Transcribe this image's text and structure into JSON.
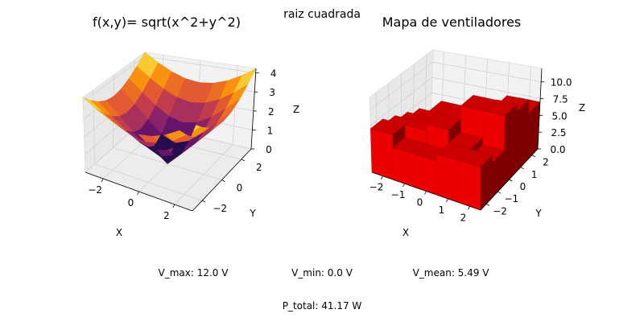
{
  "figure": {
    "suptitle": "raiz cuadrada",
    "stats": {
      "v_max": "V_max: 12.0 V",
      "v_min": "V_min: 0.0 V",
      "v_mean": "V_mean: 5.49 V",
      "p_total": "P_total: 41.17 W"
    }
  },
  "chart_data": [
    {
      "type": "surface",
      "title": "f(x,y)= sqrt(x^2+y^2)",
      "xlabel": "X",
      "ylabel": "Y",
      "zlabel": "Z",
      "xlim": [
        -3,
        3
      ],
      "ylim": [
        -3,
        3
      ],
      "zlim": [
        0,
        4.24
      ],
      "xticks": [
        "−2",
        "0",
        "2"
      ],
      "yticks": [
        "−2",
        "0",
        "2"
      ],
      "zticks": [
        "0",
        "1",
        "2",
        "3",
        "4"
      ],
      "grid_x": [
        -3,
        -2.25,
        -1.5,
        -0.75,
        0,
        0.75,
        1.5,
        2.25,
        3
      ],
      "grid_y": [
        -3,
        -2.25,
        -1.5,
        -0.75,
        0,
        0.75,
        1.5,
        2.25,
        3
      ],
      "function": "sqrt(x^2+y^2)",
      "colormap": "inferno"
    },
    {
      "type": "bar3d",
      "title": "Mapa de ventiladores",
      "xlabel": "X",
      "ylabel": "Y",
      "zlabel": "Z",
      "xlim": [
        -2.5,
        2.5
      ],
      "ylim": [
        -2.5,
        2.5
      ],
      "zlim": [
        0,
        12
      ],
      "xticks": [
        "−2",
        "−1",
        "0",
        "1",
        "2"
      ],
      "yticks": [
        "−2",
        "−1",
        "0",
        "1",
        "2"
      ],
      "zticks": [
        "0.0",
        "2.5",
        "5.0",
        "7.5",
        "10.0"
      ],
      "x": [
        -2,
        -1,
        0,
        1,
        2
      ],
      "y": [
        -2,
        -1,
        0,
        1,
        2
      ],
      "heights": [
        [
          7,
          5,
          5,
          6,
          6
        ],
        [
          6,
          7,
          8,
          6,
          5
        ],
        [
          5,
          6,
          8,
          10,
          10
        ],
        [
          4,
          6,
          6,
          7,
          9
        ],
        [
          2,
          3,
          5,
          6,
          7
        ]
      ],
      "bar_color": "#ff0000"
    }
  ]
}
